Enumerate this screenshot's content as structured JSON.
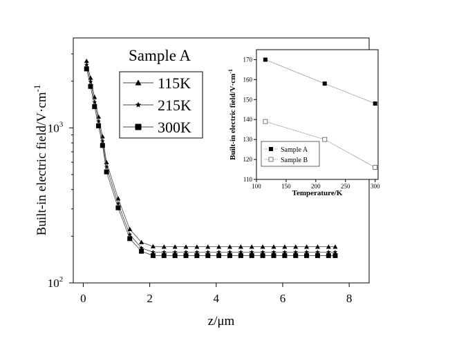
{
  "chart_data": [
    {
      "type": "line",
      "xlabel": "z/μm",
      "ylabel_main": "Built-in electric field/V·cm",
      "ylabel_sup": "-1",
      "xlim": [
        -0.3,
        8.6
      ],
      "ylim": [
        100,
        3800
      ],
      "yscale": "log",
      "x_ticks": [
        0,
        2,
        4,
        6,
        8
      ],
      "x_tick_labels": [
        "0",
        "2",
        "4",
        "6",
        "8"
      ],
      "y_ticks": [
        {
          "value": 100,
          "base": "10",
          "exp": "2"
        },
        {
          "value": 1000,
          "base": "10",
          "exp": "3"
        }
      ],
      "legend_title": "Sample A",
      "legend_position": "top-left",
      "x": [
        0.1,
        0.22,
        0.34,
        0.46,
        0.58,
        0.7,
        1.05,
        1.4,
        1.75,
        2.1,
        2.43,
        2.76,
        3.09,
        3.42,
        3.75,
        4.08,
        4.41,
        4.74,
        5.07,
        5.4,
        5.73,
        6.06,
        6.39,
        6.72,
        7.05,
        7.38,
        7.58
      ],
      "series": [
        {
          "name": "115K",
          "marker": "triangle",
          "values": [
            2700,
            2100,
            1580,
            1180,
            880,
            600,
            350,
            222,
            183,
            172,
            171,
            171,
            171,
            171,
            171,
            171,
            171,
            171,
            171,
            171,
            171,
            171,
            171,
            171,
            171,
            171,
            171
          ]
        },
        {
          "name": "215K",
          "marker": "star",
          "values": [
            2550,
            1980,
            1460,
            1100,
            820,
            560,
            325,
            205,
            168,
            158,
            158,
            158,
            158,
            158,
            158,
            158,
            158,
            158,
            158,
            158,
            158,
            158,
            158,
            158,
            158,
            158,
            158
          ]
        },
        {
          "name": "300K",
          "marker": "square",
          "values": [
            2400,
            1850,
            1370,
            1030,
            770,
            520,
            305,
            193,
            160,
            150,
            150,
            150,
            150,
            150,
            150,
            150,
            150,
            150,
            150,
            150,
            150,
            150,
            150,
            150,
            150,
            150,
            150
          ]
        }
      ]
    },
    {
      "type": "line",
      "xlabel": "Temperature/K",
      "ylabel_main": "Built-in electric field/V·cm",
      "ylabel_sup": "-1",
      "xlim": [
        100,
        305
      ],
      "ylim": [
        110,
        175
      ],
      "x_ticks": [
        100,
        150,
        200,
        250,
        300
      ],
      "y_ticks": [
        110,
        120,
        130,
        140,
        150,
        160,
        170
      ],
      "legend_position": "bottom-left",
      "x": [
        115,
        215,
        300
      ],
      "series": [
        {
          "name": "Sample A",
          "marker": "filled-square",
          "values": [
            170,
            158,
            148
          ]
        },
        {
          "name": "Sample B",
          "marker": "open-square",
          "values": [
            139,
            130,
            116
          ]
        }
      ]
    }
  ]
}
